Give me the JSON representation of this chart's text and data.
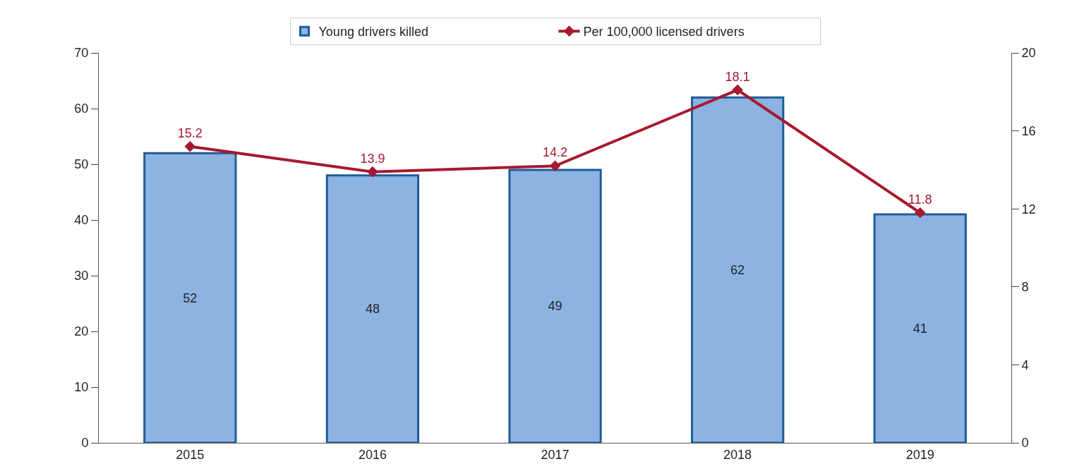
{
  "chart_data": {
    "type": "bar",
    "categories": [
      "2015",
      "2016",
      "2017",
      "2018",
      "2019"
    ],
    "series": [
      {
        "name": "Young drivers killed",
        "color": "#8db3e2",
        "values": [
          52,
          48,
          49,
          62,
          41
        ]
      },
      {
        "name": "Per 100,000 licensed drivers",
        "type": "line",
        "axis": "y2",
        "color": "#a6192e",
        "values": [
          15.2,
          13.9,
          14.2,
          18.1,
          11.8
        ]
      }
    ],
    "ylim": [
      0,
      70
    ],
    "yticks": [
      0,
      10,
      20,
      30,
      40,
      50,
      60,
      70
    ],
    "y2lim": [
      0,
      20
    ],
    "y2ticks": [
      0,
      4,
      8,
      12,
      16,
      20
    ],
    "data_labels": true,
    "legend": "top",
    "marker": "diamond",
    "line_style": "solid"
  }
}
